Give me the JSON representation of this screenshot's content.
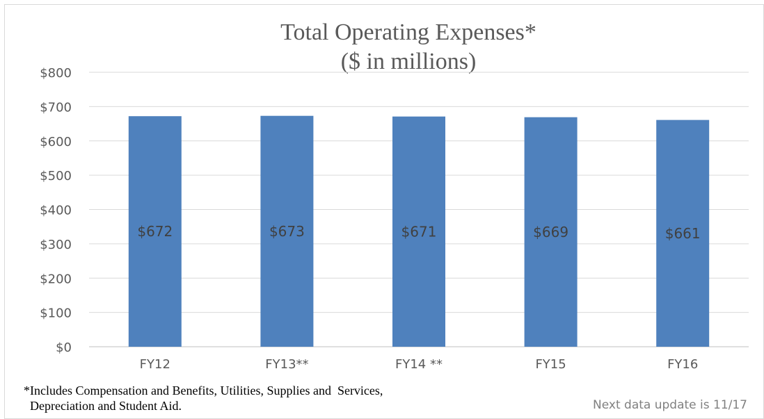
{
  "chart_data": {
    "type": "bar",
    "title_lines": [
      "Total Operating Expenses*",
      "($ in millions)"
    ],
    "categories": [
      "FY12",
      "FY13**",
      "FY14 **",
      "FY15",
      "FY16"
    ],
    "values": [
      672,
      673,
      671,
      669,
      661
    ],
    "data_labels": [
      "$672",
      "$673",
      "$671",
      "$669",
      "$661"
    ],
    "y_ticks": [
      "$0",
      "$100",
      "$200",
      "$300",
      "$400",
      "$500",
      "$600",
      "$700",
      "$800"
    ],
    "ylim": [
      0,
      800
    ],
    "grid": true,
    "bar_color": "#4f81bd"
  },
  "footnote": {
    "line1": "*Includes Compensation and Benefits, Utilities, Supplies and  Services,",
    "line2": "  Depreciation and Student Aid."
  },
  "update_note": "Next data update is 11/17"
}
